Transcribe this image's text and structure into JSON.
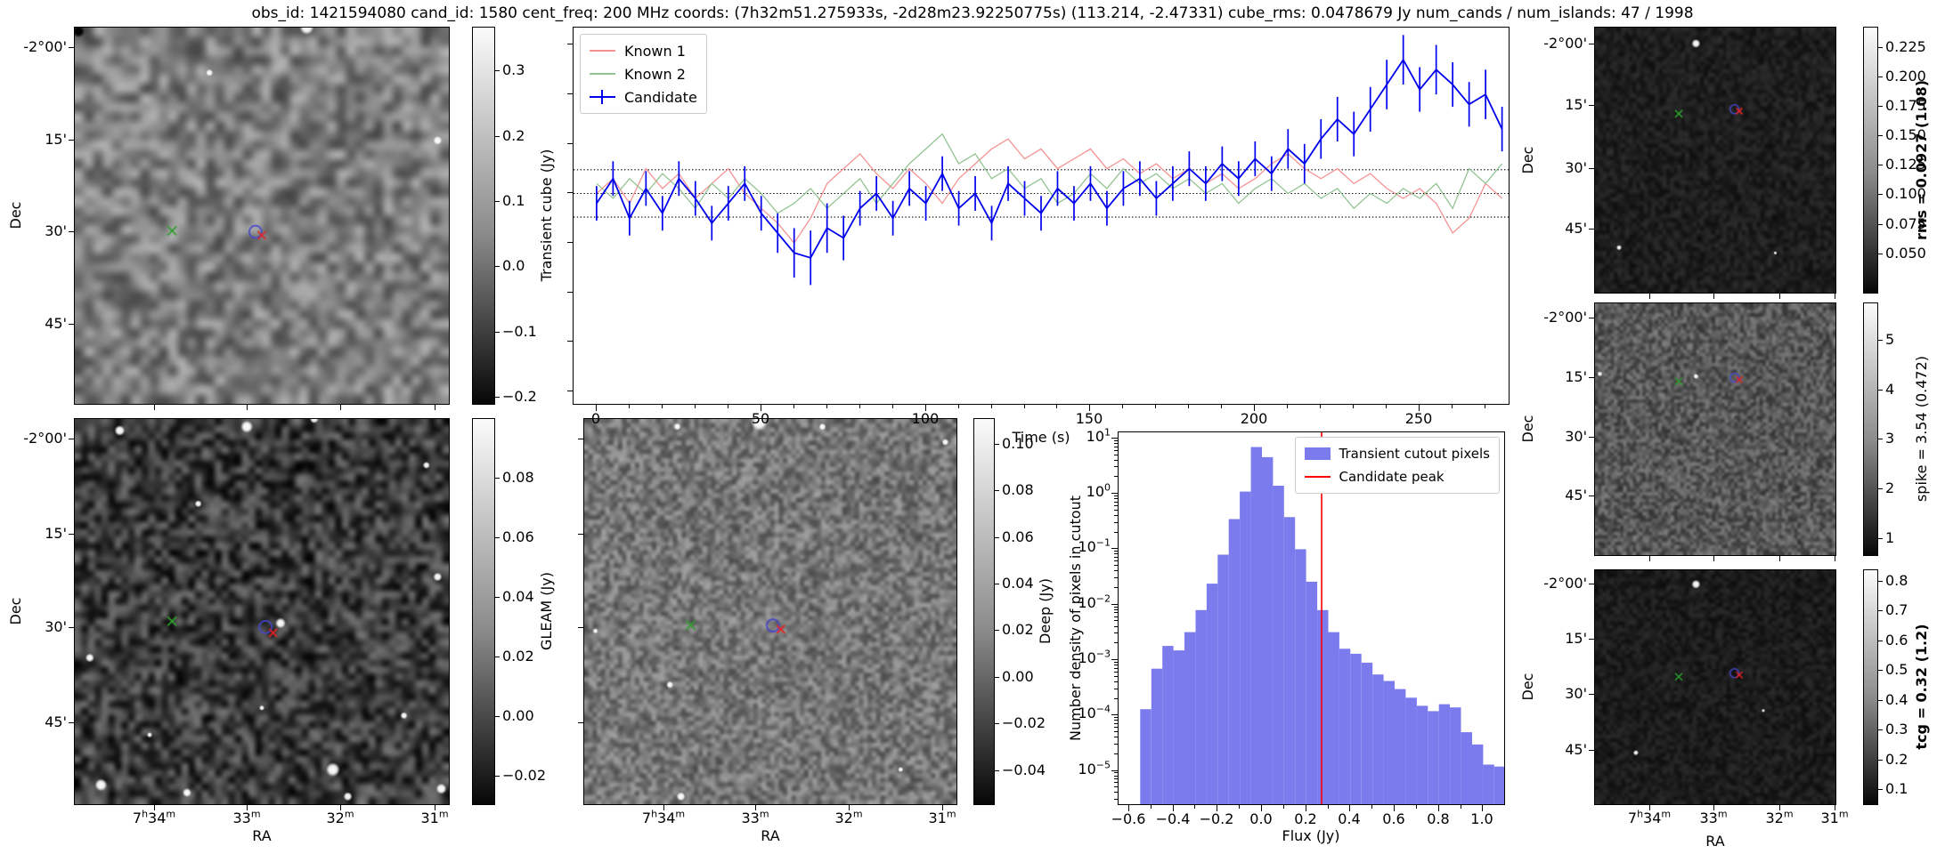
{
  "title": "obs_id: 1421594080 cand_id: 1580 cent_freq: 200 MHz coords: (7h32m51.275933s, -2d28m23.92250775s) (113.214, -2.47331) cube_rms: 0.0478679 Jy num_cands / num_islands: 47 / 1998",
  "axis": {
    "dec_label": "Dec",
    "ra_label": "RA",
    "dec_tick_labels": [
      "-2°00'",
      "15'",
      "30'",
      "45'"
    ],
    "ra_tick_labels": [
      "7h34m",
      "33m",
      "32m",
      "31m"
    ]
  },
  "colors": {
    "known1": "#f59393",
    "known2": "#93c493",
    "candidate": "#0000ee",
    "hist_bar": "#7b7bee",
    "peak_line": "#ff0000",
    "marker_green": "#2ea02e",
    "marker_red": "#e82222",
    "marker_circle": "#4646cc",
    "dotted_line": "#000000"
  },
  "cutouts": {
    "transient": {
      "cb_label": "Transient cube (Jy)",
      "cb_bold": false,
      "cb_vmax": 0.367,
      "cb_vmin": -0.212,
      "cb_ticks": [
        {
          "v": 0.3,
          "t": "0.3"
        },
        {
          "v": 0.2,
          "t": "0.2"
        },
        {
          "v": 0.1,
          "t": "0.1"
        },
        {
          "v": 0.0,
          "t": "0.0"
        },
        {
          "v": -0.1,
          "t": "−0.1"
        },
        {
          "v": -0.2,
          "t": "−0.2"
        }
      ],
      "dec_pcts": [
        5.4,
        29.9,
        54.1,
        78.6
      ],
      "ra_pcts": [
        21.3,
        46.0,
        70.9,
        96.0
      ],
      "show_dec_labels": true,
      "show_ra_labels": false,
      "markers": {
        "green": [
          26,
          54
        ],
        "circle": [
          48.3,
          54.3
        ],
        "red": [
          50,
          55.2
        ]
      },
      "noise": {
        "seed": 7,
        "grid": 40,
        "base": 125,
        "amp": 52,
        "blobs": [
          [
            62,
            0,
            8
          ],
          [
            97,
            30,
            5
          ],
          [
            36,
            12,
            4
          ]
        ],
        "dark_blobs": [
          [
            1,
            1,
            7
          ]
        ]
      }
    },
    "gleam": {
      "cb_label": "GLEAM (Jy)",
      "cb_bold": false,
      "cb_vmax": 0.1,
      "cb_vmin": -0.03,
      "cb_ticks": [
        {
          "v": 0.08,
          "t": "0.08"
        },
        {
          "v": 0.06,
          "t": "0.06"
        },
        {
          "v": 0.04,
          "t": "0.04"
        },
        {
          "v": 0.02,
          "t": "0.02"
        },
        {
          "v": 0.0,
          "t": "0.00"
        },
        {
          "v": -0.02,
          "t": "−0.02"
        }
      ],
      "dec_pcts": [
        5.4,
        29.9,
        54.1,
        78.6
      ],
      "ra_pcts": [
        21.3,
        46.0,
        70.9,
        96.0
      ],
      "show_dec_labels": true,
      "show_ra_labels": true,
      "markers": {
        "green": [
          26,
          52.5
        ],
        "circle": [
          51,
          54
        ],
        "red": [
          53,
          55.5
        ]
      },
      "noise": {
        "seed": 11,
        "grid": 56,
        "base": 60,
        "amp": 55,
        "blobs": [
          [
            12,
            3,
            6
          ],
          [
            46,
            2,
            7
          ],
          [
            64,
            0,
            5
          ],
          [
            33,
            22,
            4
          ],
          [
            55,
            53,
            6
          ],
          [
            4,
            62,
            5
          ],
          [
            97,
            41,
            5
          ],
          [
            94,
            12,
            4
          ],
          [
            88,
            77,
            4
          ],
          [
            20,
            82,
            3
          ],
          [
            50,
            75,
            3
          ],
          [
            7,
            95,
            7
          ],
          [
            30,
            97,
            5
          ],
          [
            69,
            91,
            8
          ],
          [
            73,
            98,
            5
          ],
          [
            98,
            96,
            6
          ]
        ],
        "dark_blobs": []
      }
    },
    "deep": {
      "cb_label": "Deep (Jy)",
      "cb_bold": false,
      "cb_vmax": 0.111,
      "cb_vmin": -0.055,
      "cb_ticks": [
        {
          "v": 0.1,
          "t": "0.10"
        },
        {
          "v": 0.08,
          "t": "0.08"
        },
        {
          "v": 0.06,
          "t": "0.06"
        },
        {
          "v": 0.04,
          "t": "0.04"
        },
        {
          "v": 0.02,
          "t": "0.02"
        },
        {
          "v": 0.0,
          "t": "0.00"
        },
        {
          "v": -0.02,
          "t": "−0.02"
        },
        {
          "v": -0.04,
          "t": "−0.04"
        }
      ],
      "dec_pcts": [
        5.4,
        29.9,
        54.1,
        78.6
      ],
      "ra_pcts": [
        21.4,
        46.0,
        70.9,
        96.0
      ],
      "show_dec_labels": false,
      "show_ra_labels": true,
      "markers": {
        "green": [
          28.6,
          53.5
        ],
        "circle": [
          50.7,
          53.6
        ],
        "red": [
          52.8,
          54.6
        ]
      },
      "noise": {
        "seed": 23,
        "grid": 88,
        "base": 118,
        "amp": 42,
        "blobs": [
          [
            47,
            1,
            9
          ],
          [
            25,
            2,
            4
          ],
          [
            64,
            2,
            4
          ],
          [
            97,
            6,
            4
          ],
          [
            23,
            69,
            4
          ],
          [
            3,
            55,
            3
          ],
          [
            26,
            98,
            5
          ],
          [
            85,
            91,
            3
          ]
        ],
        "dark_blobs": []
      }
    },
    "rms": {
      "cb_label": "rms = 0.0927 (1.08)",
      "cb_bold": true,
      "cb_vmax": 0.242,
      "cb_vmin": 0.016,
      "cb_ticks": [
        {
          "v": 0.225,
          "t": "0.225"
        },
        {
          "v": 0.2,
          "t": "0.200"
        },
        {
          "v": 0.175,
          "t": "0.175"
        },
        {
          "v": 0.15,
          "t": "0.150"
        },
        {
          "v": 0.125,
          "t": "0.125"
        },
        {
          "v": 0.1,
          "t": "0.100"
        },
        {
          "v": 0.075,
          "t": "0.075"
        },
        {
          "v": 0.05,
          "t": "0.050"
        }
      ],
      "dec_pcts": [
        6.3,
        29.3,
        53.0,
        75.5
      ],
      "ra_pcts": [
        22.8,
        49.3,
        76.6,
        99.3
      ],
      "show_dec_labels": true,
      "show_ra_labels": false,
      "markers": {
        "green": [
          34.8,
          32.5
        ],
        "circle": [
          58,
          30.8
        ],
        "red": [
          60,
          31.5
        ]
      },
      "noise": {
        "seed": 31,
        "grid": 64,
        "base": 30,
        "amp": 16,
        "blobs": [
          [
            42,
            6,
            5
          ],
          [
            10,
            83,
            3
          ],
          [
            75,
            85,
            2
          ]
        ],
        "dark_blobs": []
      }
    },
    "spike": {
      "cb_label": "spike = 3.54 (0.472)",
      "cb_bold": false,
      "cb_vmax": 5.75,
      "cb_vmin": 0.64,
      "cb_ticks": [
        {
          "v": 5,
          "t": "5"
        },
        {
          "v": 4,
          "t": "4"
        },
        {
          "v": 3,
          "t": "3"
        },
        {
          "v": 2,
          "t": "2"
        },
        {
          "v": 1,
          "t": "1"
        }
      ],
      "dec_pcts": [
        6.0,
        29.5,
        53.0,
        76.0
      ],
      "ra_pcts": [
        22.8,
        49.3,
        76.6,
        99.3
      ],
      "show_dec_labels": true,
      "show_ra_labels": false,
      "markers": {
        "green": [
          34.8,
          31
        ],
        "circle": [
          58,
          29.5
        ],
        "red": [
          60,
          30.3
        ]
      },
      "noise": {
        "seed": 41,
        "grid": 76,
        "base": 88,
        "amp": 38,
        "blobs": [
          [
            2,
            28,
            3
          ],
          [
            42,
            29,
            3
          ]
        ],
        "dark_blobs": []
      }
    },
    "tcg": {
      "cb_label": "tcg = 0.32 (1.2)",
      "cb_bold": true,
      "cb_vmax": 0.839,
      "cb_vmin": 0.046,
      "cb_ticks": [
        {
          "v": 0.8,
          "t": "0.8"
        },
        {
          "v": 0.7,
          "t": "0.7"
        },
        {
          "v": 0.6,
          "t": "0.6"
        },
        {
          "v": 0.5,
          "t": "0.5"
        },
        {
          "v": 0.4,
          "t": "0.4"
        },
        {
          "v": 0.3,
          "t": "0.3"
        },
        {
          "v": 0.2,
          "t": "0.2"
        },
        {
          "v": 0.1,
          "t": "0.1"
        }
      ],
      "dec_pcts": [
        6.0,
        29.5,
        53.0,
        76.5
      ],
      "ra_pcts": [
        22.8,
        49.3,
        76.6,
        99.3
      ],
      "show_dec_labels": true,
      "show_ra_labels": true,
      "markers": {
        "green": [
          34.8,
          45.5
        ],
        "circle": [
          58,
          44
        ],
        "red": [
          60,
          44.8
        ]
      },
      "noise": {
        "seed": 51,
        "grid": 64,
        "base": 28,
        "amp": 15,
        "blobs": [
          [
            42,
            6,
            5
          ],
          [
            17,
            78,
            3
          ],
          [
            70,
            60,
            2
          ]
        ],
        "dark_blobs": []
      }
    }
  },
  "chart_data": [
    {
      "type": "line",
      "xlabel": "Time (s)",
      "xlim": [
        -7,
        277
      ],
      "ylim": [
        -0.425,
        0.335
      ],
      "x_start": 0,
      "x_step": 5,
      "xticks": [
        0,
        50,
        100,
        150,
        200,
        250
      ],
      "hlines": [
        0.0478679,
        0.0,
        -0.0478679
      ],
      "legend_position": "upper left",
      "series": [
        {
          "name": "Known 1",
          "color": "#f59393",
          "values": [
            0.0,
            0.03,
            -0.02,
            0.05,
            0.01,
            0.04,
            -0.01,
            0.02,
            0.05,
            0.0,
            -0.03,
            -0.06,
            -0.1,
            -0.05,
            0.02,
            0.05,
            0.08,
            0.04,
            0.01,
            0.05,
            0.02,
            -0.02,
            0.03,
            0.06,
            0.09,
            0.11,
            0.07,
            0.09,
            0.05,
            0.07,
            0.09,
            0.05,
            0.07,
            0.04,
            0.06,
            0.03,
            0.05,
            0.02,
            0.04,
            0.01,
            0.03,
            0.06,
            0.08,
            0.05,
            0.03,
            0.05,
            0.02,
            0.04,
            0.01,
            -0.01,
            0.01,
            -0.02,
            -0.08,
            -0.05,
            0.02,
            -0.01
          ]
        },
        {
          "name": "Known 2",
          "color": "#93c493",
          "values": [
            0.02,
            -0.01,
            0.03,
            0.0,
            0.04,
            0.01,
            -0.03,
            0.02,
            -0.01,
            0.03,
            0.0,
            -0.04,
            -0.02,
            0.01,
            -0.03,
            0.0,
            0.03,
            -0.02,
            0.02,
            0.06,
            0.09,
            0.12,
            0.06,
            0.08,
            0.03,
            0.05,
            0.01,
            0.03,
            -0.02,
            0.0,
            0.04,
            0.01,
            0.05,
            0.02,
            0.04,
            0.01,
            0.03,
            0.0,
            0.02,
            -0.02,
            0.01,
            0.03,
            0.0,
            0.02,
            -0.01,
            0.01,
            -0.03,
            0.0,
            -0.02,
            0.01,
            -0.01,
            0.02,
            -0.03,
            0.05,
            0.02,
            0.06
          ]
        },
        {
          "name": "Candidate",
          "color": "#0000ee",
          "values": [
            -0.02,
            0.03,
            -0.05,
            0.01,
            -0.04,
            0.03,
            -0.01,
            -0.06,
            -0.02,
            0.02,
            -0.04,
            -0.08,
            -0.12,
            -0.13,
            -0.07,
            -0.09,
            -0.03,
            0.0,
            -0.05,
            0.01,
            -0.02,
            0.04,
            -0.03,
            0.0,
            -0.06,
            0.02,
            -0.01,
            -0.04,
            0.01,
            -0.02,
            0.02,
            -0.03,
            0.01,
            0.03,
            -0.01,
            0.02,
            0.05,
            0.02,
            0.06,
            0.03,
            0.07,
            0.04,
            0.09,
            0.06,
            0.11,
            0.15,
            0.12,
            0.17,
            0.22,
            0.27,
            0.21,
            0.25,
            0.22,
            0.18,
            0.2,
            0.13
          ],
          "err": [
            0.035,
            0.035,
            0.035,
            0.035,
            0.035,
            0.035,
            0.035,
            0.035,
            0.035,
            0.035,
            0.035,
            0.04,
            0.05,
            0.055,
            0.05,
            0.045,
            0.035,
            0.035,
            0.035,
            0.035,
            0.035,
            0.035,
            0.035,
            0.035,
            0.035,
            0.035,
            0.035,
            0.035,
            0.035,
            0.035,
            0.035,
            0.035,
            0.035,
            0.035,
            0.035,
            0.035,
            0.035,
            0.035,
            0.035,
            0.035,
            0.035,
            0.035,
            0.04,
            0.04,
            0.04,
            0.045,
            0.045,
            0.045,
            0.05,
            0.05,
            0.045,
            0.05,
            0.045,
            0.045,
            0.05,
            0.045
          ]
        }
      ]
    },
    {
      "type": "histogram",
      "xlabel": "Flux (Jy)",
      "ylabel": "Number density of pixels in cutout",
      "xlim": [
        -0.648,
        1.095
      ],
      "ylog_top": 1.11,
      "ylog_bottom": -5.6,
      "bin_start": -0.55,
      "bin_width": 0.05,
      "counts": [
        0.00013,
        0.0007,
        0.0018,
        0.0015,
        0.0032,
        0.008,
        0.024,
        0.08,
        0.35,
        1.1,
        7.0,
        4.6,
        1.4,
        0.38,
        0.1,
        0.026,
        0.008,
        0.0032,
        0.0016,
        0.0013,
        0.0009,
        0.00055,
        0.00042,
        0.0003,
        0.00021,
        0.00015,
        0.00012,
        0.00016,
        0.00014,
        5e-05,
        3e-05,
        1.3e-05,
        1.2e-05
      ],
      "bar_color": "#7b7bee",
      "vline": {
        "x": 0.27,
        "color": "#ff0000"
      },
      "legend": [
        "Transient cutout pixels",
        "Candidate peak"
      ],
      "legend_position": "upper right",
      "xticks": [
        {
          "v": -0.6,
          "t": "−0.6"
        },
        {
          "v": -0.4,
          "t": "−0.4"
        },
        {
          "v": -0.2,
          "t": "−0.2"
        },
        {
          "v": 0.0,
          "t": "0.0"
        },
        {
          "v": 0.2,
          "t": "0.2"
        },
        {
          "v": 0.4,
          "t": "0.4"
        },
        {
          "v": 0.6,
          "t": "0.6"
        },
        {
          "v": 0.8,
          "t": "0.8"
        },
        {
          "v": 1.0,
          "t": "1.0"
        }
      ],
      "ytick_exponents": [
        1,
        0,
        -1,
        -2,
        -3,
        -4,
        -5
      ]
    }
  ]
}
